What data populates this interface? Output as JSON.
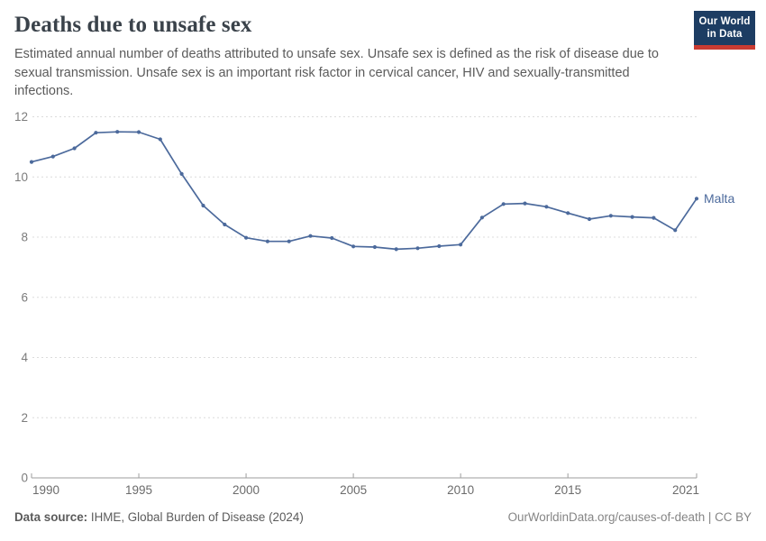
{
  "header": {
    "title": "Deaths due to unsafe sex",
    "logo": {
      "line1": "Our World",
      "line2": "in Data"
    }
  },
  "subtitle": "Estimated annual number of deaths attributed to unsafe sex. Unsafe sex is defined as the risk of disease due to sexual transmission. Unsafe sex is an important risk factor in cervical cancer, HIV and sexually-transmitted infections.",
  "chart_data": {
    "type": "line",
    "title": "Deaths due to unsafe sex",
    "entity": "Malta",
    "x": [
      1990,
      1991,
      1992,
      1993,
      1994,
      1995,
      1996,
      1997,
      1998,
      1999,
      2000,
      2001,
      2002,
      2003,
      2004,
      2005,
      2006,
      2007,
      2008,
      2009,
      2010,
      2011,
      2012,
      2013,
      2014,
      2015,
      2016,
      2017,
      2018,
      2019,
      2020,
      2021
    ],
    "series": [
      {
        "name": "Malta",
        "color": "#4C6A9C",
        "values": [
          10.5,
          10.68,
          10.95,
          11.47,
          11.5,
          11.49,
          11.25,
          10.1,
          9.05,
          8.42,
          7.98,
          7.86,
          7.86,
          8.04,
          7.97,
          7.69,
          7.67,
          7.6,
          7.63,
          7.7,
          7.75,
          8.65,
          9.1,
          9.12,
          9.01,
          8.8,
          8.6,
          8.71,
          8.67,
          8.64,
          8.23,
          9.28
        ]
      }
    ],
    "xlabel": "",
    "ylabel": "",
    "ylim": [
      0,
      12
    ],
    "yticks": [
      0,
      2,
      4,
      6,
      8,
      10,
      12
    ],
    "xticks": [
      1990,
      1995,
      2000,
      2005,
      2010,
      2015,
      2021
    ],
    "grid": "horizontal-dashed",
    "legend_position": "end-of-line-label",
    "end_label": "Malta"
  },
  "footer": {
    "source_label": "Data source:",
    "source_text": " IHME, Global Burden of Disease (2024)",
    "right_text": "OurWorldinData.org/causes-of-death | CC BY"
  },
  "colors": {
    "line": "#4C6A9C",
    "grid": "#dcdcdc",
    "axis": "#9e9e9e",
    "tick_label": "#7c7c7c",
    "x_tick_label": "#6b6b6b",
    "title": "#3a424a",
    "subtitle": "#5b5b5b",
    "logo_bg": "#1d3d63",
    "logo_bar": "#c93b32",
    "footer_text": "#5b5b5b",
    "footer_link": "#858585"
  }
}
